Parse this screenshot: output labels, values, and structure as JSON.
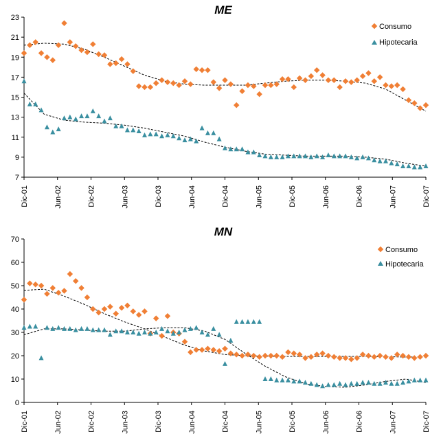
{
  "colors": {
    "consumo": "#F07F35",
    "hipotecaria": "#3A8FA0",
    "trend": "#000000"
  },
  "chart_data": [
    {
      "type": "scatter",
      "title": "ME",
      "ylim": [
        7,
        23
      ],
      "yticks": [
        7,
        9,
        11,
        13,
        15,
        17,
        19,
        21,
        23
      ],
      "xticks": [
        "Dic-01",
        "Jun-02",
        "Dic-02",
        "Jun-03",
        "Dic-03",
        "Jun-04",
        "Dic-04",
        "Jun-05",
        "Dic-05",
        "Jun-06",
        "Dic-06",
        "Jun-07",
        "Dic-07"
      ],
      "grid": false,
      "legend": "top-right",
      "series": [
        {
          "name": "Consumo",
          "marker": "diamond",
          "values": [
            19.4,
            20.2,
            20.5,
            19.4,
            19.0,
            18.7,
            20.2,
            22.4,
            20.5,
            20.1,
            19.7,
            19.5,
            20.3,
            19.3,
            19.2,
            18.3,
            18.4,
            18.8,
            18.3,
            17.6,
            16.1,
            16.0,
            16.0,
            16.4,
            16.7,
            16.5,
            16.4,
            16.2,
            16.6,
            16.3,
            17.8,
            17.7,
            17.7,
            16.5,
            15.9,
            16.7,
            16.3,
            14.2,
            15.6,
            16.2,
            16.1,
            15.3,
            16.2,
            16.2,
            16.3,
            16.8,
            16.8,
            16.0,
            16.9,
            16.7,
            17.1,
            17.7,
            17.2,
            16.7,
            16.7,
            16.0,
            16.6,
            16.5,
            16.7,
            17.1,
            17.4,
            16.6,
            17.0,
            16.2,
            16.1,
            16.2,
            15.8,
            14.7,
            14.4,
            13.9,
            14.2
          ],
          "trend": [
            20.2,
            20.4,
            20.3,
            19.8,
            19.0,
            18.1,
            17.2,
            16.6,
            16.3,
            16.2,
            16.2,
            16.2,
            16.4,
            16.6,
            16.7,
            16.7,
            16.6,
            16.4,
            15.8,
            14.7,
            13.6
          ]
        },
        {
          "name": "Hipotecaria",
          "marker": "triangle",
          "values": [
            16.6,
            14.3,
            14.3,
            13.7,
            12.0,
            11.5,
            11.8,
            12.9,
            13.0,
            12.8,
            13.1,
            13.1,
            13.6,
            13.1,
            12.6,
            12.9,
            12.1,
            12.1,
            11.7,
            11.7,
            11.6,
            11.2,
            11.3,
            11.3,
            11.1,
            11.2,
            11.1,
            10.9,
            10.7,
            10.8,
            10.6,
            11.9,
            11.4,
            11.4,
            10.8,
            9.9,
            9.8,
            9.8,
            9.8,
            9.5,
            9.5,
            9.2,
            9.1,
            9.0,
            9.0,
            9.0,
            9.1,
            9.1,
            9.1,
            9.1,
            9.0,
            9.1,
            9.0,
            9.2,
            9.1,
            9.1,
            9.1,
            9.0,
            8.9,
            9.0,
            8.9,
            8.7,
            8.6,
            8.6,
            8.4,
            8.3,
            8.1,
            8.1,
            8.0,
            8.0,
            8.1
          ],
          "trend": [
            15.4,
            13.3,
            12.7,
            12.5,
            12.4,
            12.2,
            11.9,
            11.5,
            11.1,
            10.5,
            10.0,
            9.6,
            9.3,
            9.2,
            9.1,
            9.1,
            9.1,
            9.0,
            8.8,
            8.4,
            8.1
          ]
        }
      ]
    },
    {
      "type": "scatter",
      "title": "MN",
      "ylim": [
        0,
        70
      ],
      "yticks": [
        0,
        10,
        20,
        30,
        40,
        50,
        60,
        70
      ],
      "xticks": [
        "Dic-01",
        "Jun-02",
        "Dic-02",
        "Jun-03",
        "Dic-03",
        "Jun-04",
        "Dic-04",
        "Jun-05",
        "Dic-05",
        "Jun-06",
        "Dic-06",
        "Jun-07",
        "Dic-07"
      ],
      "grid": false,
      "legend": "top-right",
      "series": [
        {
          "name": "Consumo",
          "marker": "diamond",
          "values": [
            44.0,
            51.0,
            50.5,
            50.0,
            46.5,
            49.0,
            47.0,
            47.8,
            55.0,
            52.0,
            49.0,
            45.0,
            40.0,
            38.5,
            40.0,
            41.0,
            38.0,
            40.5,
            41.5,
            39.0,
            37.5,
            39.0,
            29.5,
            36.0,
            28.5,
            37.0,
            30.0,
            29.5,
            26.0,
            21.5,
            22.5,
            22.5,
            23.0,
            22.5,
            22.0,
            23.0,
            21.0,
            20.5,
            20.0,
            20.5,
            20.0,
            19.5,
            20.0,
            20.0,
            20.0,
            19.5,
            21.5,
            21.0,
            20.5,
            19.0,
            19.5,
            20.5,
            21.0,
            20.0,
            19.5,
            19.0,
            19.0,
            18.5,
            19.0,
            20.5,
            20.0,
            19.5,
            20.0,
            19.5,
            19.0,
            20.5,
            20.0,
            19.5,
            19.0,
            19.5,
            20.0
          ],
          "trend": [
            48.0,
            48.5,
            45.5,
            42.0,
            38.0,
            34.5,
            31.5,
            28.0,
            24.5,
            22.0,
            20.5,
            20.0,
            19.8,
            19.7,
            19.7,
            19.7,
            19.7,
            19.7,
            19.6,
            19.4,
            19.5
          ]
        },
        {
          "name": "Hipotecaria",
          "marker": "triangle",
          "values": [
            32.0,
            32.5,
            32.5,
            19.0,
            32.0,
            31.5,
            32.0,
            31.5,
            31.5,
            31.0,
            31.5,
            31.5,
            31.0,
            31.0,
            31.0,
            29.0,
            30.5,
            30.5,
            30.0,
            30.0,
            29.5,
            30.0,
            29.5,
            30.0,
            31.5,
            30.5,
            29.5,
            30.0,
            31.0,
            31.5,
            32.0,
            30.0,
            29.0,
            31.5,
            29.0,
            16.5,
            26.5,
            34.5,
            34.5,
            34.5,
            34.5,
            34.5,
            10.0,
            10.0,
            9.5,
            9.5,
            9.5,
            9.0,
            9.0,
            8.5,
            8.0,
            7.5,
            7.0,
            7.5,
            7.5,
            8.0,
            7.5,
            8.0,
            8.0,
            8.5,
            8.5,
            8.0,
            8.0,
            8.5,
            8.0,
            8.0,
            8.5,
            9.0,
            9.5,
            9.5,
            9.5
          ],
          "trend": [
            29.0,
            31.5,
            31.5,
            31.0,
            30.5,
            30.5,
            31.5,
            32.0,
            32.0,
            30.5,
            27.0,
            21.0,
            15.5,
            11.0,
            8.0,
            6.8,
            6.5,
            7.5,
            9.0,
            10.0,
            8.5
          ]
        }
      ]
    }
  ]
}
